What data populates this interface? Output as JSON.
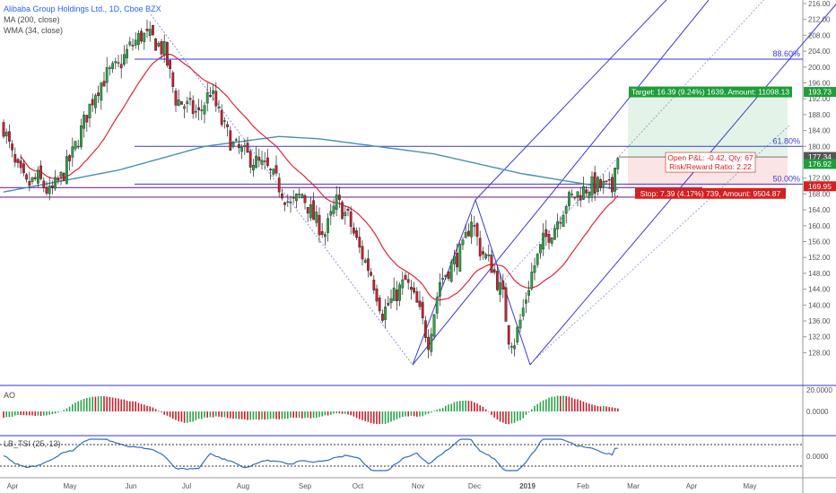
{
  "chart_data": {
    "type": "candlestick",
    "title": "Alibaba Group Holdings Ltd., 1D, Cboe BZX",
    "indicators": [
      "MA (200, close)",
      "WMA (34, close)"
    ],
    "ylim": [
      124,
      216
    ],
    "y_ticks": [
      "216.00",
      "212.00",
      "208.00",
      "204.00",
      "200.00",
      "196.00",
      "192.00",
      "188.00",
      "184.00",
      "180.00",
      "176.00",
      "172.00",
      "168.00",
      "164.00",
      "160.00",
      "156.00",
      "152.00",
      "148.00",
      "144.00",
      "140.00",
      "136.00",
      "132.00",
      "128.00"
    ],
    "x_labels": [
      "Apr",
      "May",
      "Jun",
      "Jul",
      "Aug",
      "Sep",
      "Oct",
      "Nov",
      "Dec",
      "2019",
      "Feb",
      "Mar",
      "Apr",
      "May"
    ],
    "waypoints": [
      [
        0,
        185
      ],
      [
        4,
        175
      ],
      [
        8,
        170
      ],
      [
        12,
        172
      ],
      [
        16,
        168
      ],
      [
        20,
        172
      ],
      [
        24,
        178
      ],
      [
        28,
        186
      ],
      [
        32,
        194
      ],
      [
        36,
        198
      ],
      [
        40,
        200
      ],
      [
        44,
        205
      ],
      [
        48,
        208
      ],
      [
        52,
        207
      ],
      [
        56,
        204
      ],
      [
        60,
        192
      ],
      [
        64,
        190
      ],
      [
        68,
        188
      ],
      [
        72,
        194
      ],
      [
        76,
        186
      ],
      [
        80,
        180
      ],
      [
        84,
        178
      ],
      [
        88,
        176
      ],
      [
        92,
        174
      ],
      [
        96,
        170
      ],
      [
        100,
        165
      ],
      [
        104,
        168
      ],
      [
        108,
        162
      ],
      [
        112,
        158
      ],
      [
        116,
        166
      ],
      [
        120,
        162
      ],
      [
        124,
        154
      ],
      [
        128,
        148
      ],
      [
        132,
        138
      ],
      [
        136,
        142
      ],
      [
        140,
        146
      ],
      [
        144,
        140
      ],
      [
        148,
        131
      ],
      [
        152,
        146
      ],
      [
        156,
        150
      ],
      [
        160,
        154
      ],
      [
        163,
        162
      ],
      [
        166,
        154
      ],
      [
        170,
        150
      ],
      [
        174,
        142
      ],
      [
        176,
        132
      ],
      [
        178,
        131
      ],
      [
        180,
        136
      ],
      [
        184,
        148
      ],
      [
        188,
        156
      ],
      [
        192,
        160
      ],
      [
        196,
        166
      ],
      [
        200,
        168
      ],
      [
        204,
        170
      ],
      [
        208,
        170
      ],
      [
        212,
        169
      ],
      [
        213,
        177
      ]
    ],
    "fib_levels": [
      {
        "label": "88.60%",
        "price": 202.0
      },
      {
        "label": "61.80%",
        "price": 180.0
      },
      {
        "label": "50.00%",
        "price": 170.5
      }
    ],
    "horizontal_lines": [
      169.6,
      167.2
    ],
    "price_badges": [
      {
        "text": "193.73",
        "color": "#1e9e3a"
      },
      {
        "text": "177.34",
        "color": "#555555"
      },
      {
        "text": "176.92",
        "color": "#1e9e3a"
      },
      {
        "text": "169.95",
        "color": "#d61f1f"
      }
    ],
    "position": {
      "target": "Target: 16.39 (9.24%) 1639, Amount: 11098.13",
      "open_pnl": "Open P&L: -0.42, Qty: 67",
      "ratio": "Risk/Reward Ratio: 2.22",
      "stop": "Stop: 7.39 (4.17%) 739, Amount: 9504.87",
      "target_price": 193.73,
      "entry_price": 177.34,
      "stop_price": 169.95
    },
    "ao": {
      "label": "AO",
      "ticks": [
        "20.0000",
        "0.0000"
      ]
    },
    "tsi": {
      "label": "LB_TSI (25, 13)",
      "ticks": [
        "0.0000"
      ]
    }
  }
}
